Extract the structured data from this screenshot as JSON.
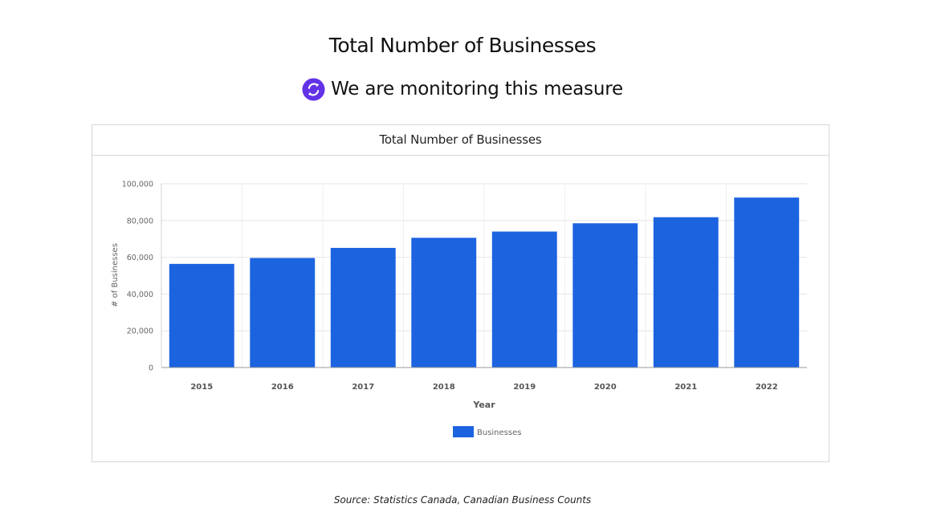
{
  "page": {
    "title": "Total Number of Businesses",
    "status_text": "We are monitoring this measure",
    "source_label": "Source:",
    "source_text": "Statistics Canada, Canadian Business Counts"
  },
  "colors": {
    "bar": "#1c63e0",
    "status_icon": "#6332e6",
    "grid": "#e6e6e6",
    "axis_text": "#666666"
  },
  "chart_data": {
    "type": "bar",
    "title": "Total Number of Businesses",
    "xlabel": "Year",
    "ylabel": "# of Businesses",
    "categories": [
      "2015",
      "2016",
      "2017",
      "2018",
      "2019",
      "2020",
      "2021",
      "2022"
    ],
    "series": [
      {
        "name": "Businesses",
        "values": [
          56400,
          59600,
          65100,
          70600,
          74000,
          78500,
          81800,
          92500
        ]
      }
    ],
    "ylim": [
      0,
      100000
    ],
    "yticks": [
      0,
      20000,
      40000,
      60000,
      80000,
      100000
    ],
    "ytick_labels": [
      "0",
      "20,000",
      "40,000",
      "60,000",
      "80,000",
      "100,000"
    ],
    "grid": true,
    "legend_position": "bottom-center"
  }
}
